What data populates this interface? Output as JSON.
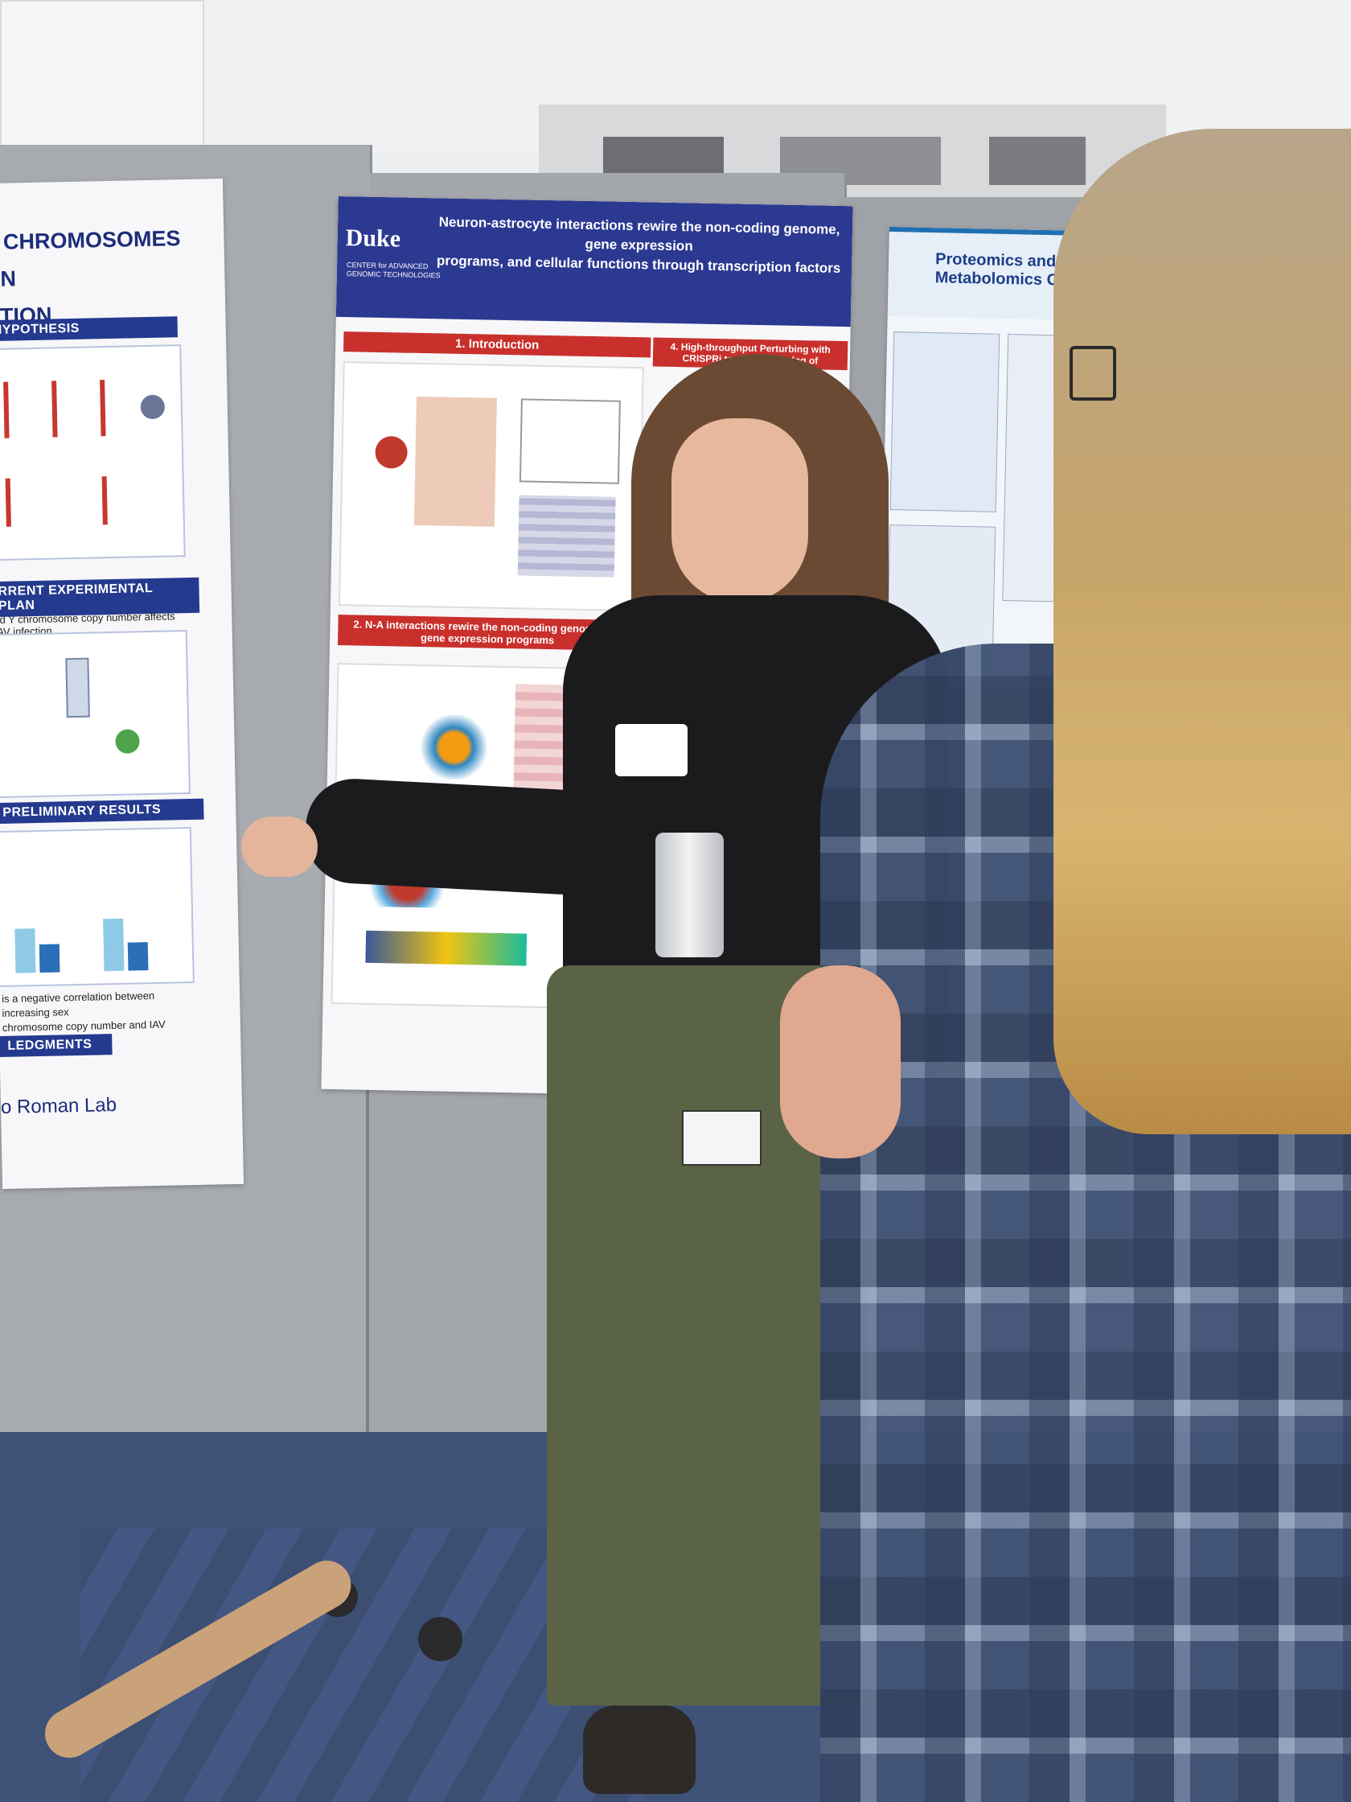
{
  "poster_left": {
    "title_line1": "X CHROMOSOMES ON",
    "title_line2": "CTION",
    "section_hypothesis": "HYPOTHESIS",
    "section_plan": "RRENT EXPERIMENTAL PLAN",
    "plan_text": "nd Y chromosome copy number affects IAV infection.",
    "section_results": "PRELIMINARY RESULTS",
    "results_text_line1": "is a negative correlation between increasing sex",
    "results_text_line2": "chromosome copy number and IAV infection",
    "section_ack": "LEDGMENTS",
    "footer": "o Roman Lab"
  },
  "poster_center": {
    "logo": "Duke",
    "logo_sub": "CENTER for ADVANCED GENOMIC TECHNOLOGIES",
    "title_line1": "Neuron-astrocyte interactions rewire the non-coding genome, gene expression",
    "title_line2": "programs, and cellular functions through transcription factors",
    "section_1": "1. Introduction",
    "section_2_line1": "2. N-A interactions rewire the non-coding genome and",
    "section_2_line2": "gene expression programs",
    "section_4": "4. High-throughput Perturbing with CRISPRi to expand catalog of"
  },
  "poster_right": {
    "title": "Proteomics and Metabolomics Core"
  },
  "colors": {
    "wall": "#eceef0",
    "partition": "#a3a6ab",
    "carpet": "#3f5277",
    "sweater": "#1b1b1e",
    "pants": "#5a6346",
    "flannel": "#4a5d80",
    "blonde_hair": "#c8a56a"
  }
}
